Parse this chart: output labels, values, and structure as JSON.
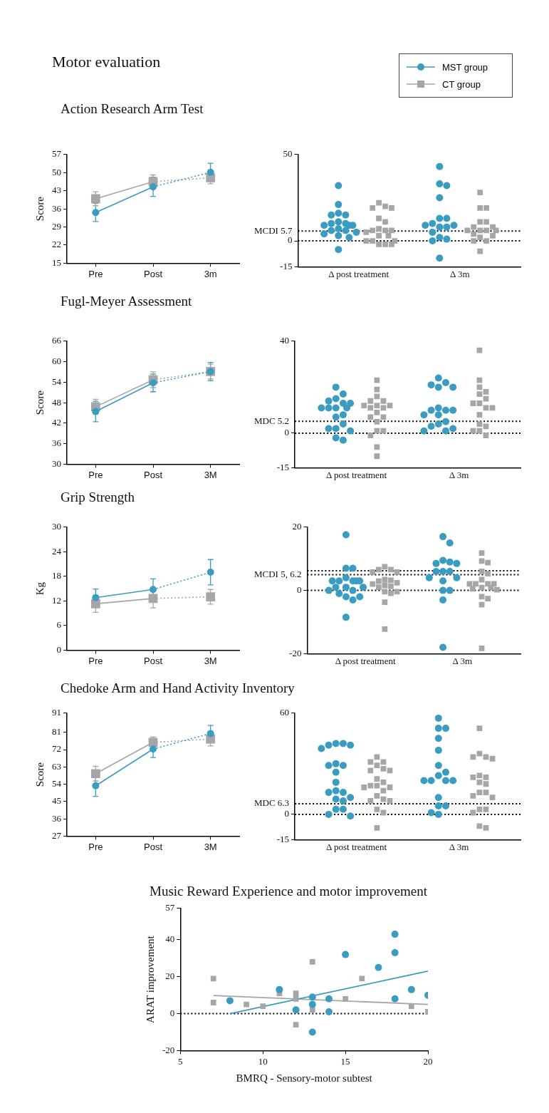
{
  "chart_data": [
    {
      "type": "line",
      "title": "Action Research Arm Test",
      "annotations": [
        "Motor evaluation"
      ],
      "legend": "top right",
      "ylabel": "Score",
      "categories": [
        "Pre",
        "Post",
        "3m"
      ],
      "ylim": [
        15,
        57
      ],
      "yticks": [
        15,
        22,
        29,
        36,
        43,
        50,
        57
      ],
      "series": [
        {
          "name": "MST group",
          "color": "#3a9cc0",
          "marker": "circle",
          "line_style": [
            "solid",
            "dotted"
          ],
          "values": [
            34.6,
            44.5,
            50.1
          ],
          "errors": [
            3.5,
            3.7,
            3.5
          ]
        },
        {
          "name": "CT group",
          "color": "#a6a6a8",
          "marker": "square",
          "line_style": [
            "solid",
            "dotted"
          ],
          "values": [
            39.9,
            46.5,
            48.0
          ],
          "errors": [
            2.7,
            2.6,
            2.3
          ]
        }
      ]
    },
    {
      "type": "scatter",
      "categories": [
        "Δ post treatment",
        "Δ 3m"
      ],
      "ylim": [
        -15,
        50
      ],
      "yticks": [
        -15,
        0,
        50
      ],
      "ref_lines": [
        {
          "axis": "y",
          "value": 5.7,
          "label": "MCDI 5.7",
          "line_style": "dotted"
        },
        {
          "axis": "y",
          "value": 0,
          "line_style": "dotted"
        }
      ],
      "series": [
        {
          "color": "#3a9cc0",
          "marker": "circle",
          "values": [
            32,
            21,
            16,
            15,
            15,
            11,
            10,
            10,
            9,
            9,
            9,
            7,
            6,
            6,
            5,
            4,
            3,
            2,
            -5,
            43,
            33,
            32,
            25,
            13,
            13,
            10,
            9,
            9,
            8,
            8,
            5,
            2,
            1,
            0,
            -10
          ],
          "x": [
            "Δ post treatment",
            "Δ post treatment",
            "Δ post treatment",
            "Δ post treatment",
            "Δ post treatment",
            "Δ post treatment",
            "Δ post treatment",
            "Δ post treatment",
            "Δ post treatment",
            "Δ post treatment",
            "Δ post treatment",
            "Δ post treatment",
            "Δ post treatment",
            "Δ post treatment",
            "Δ post treatment",
            "Δ post treatment",
            "Δ post treatment",
            "Δ post treatment",
            "Δ post treatment",
            "Δ 3m",
            "Δ 3m",
            "Δ 3m",
            "Δ 3m",
            "Δ 3m",
            "Δ 3m",
            "Δ 3m",
            "Δ 3m",
            "Δ 3m",
            "Δ 3m",
            "Δ 3m",
            "Δ 3m",
            "Δ 3m",
            "Δ 3m",
            "Δ 3m",
            "Δ 3m"
          ]
        },
        {
          "color": "#a6a6a8",
          "marker": "square",
          "values": [
            22,
            20,
            19,
            19,
            13,
            11,
            7,
            6,
            6,
            6,
            5,
            3,
            3,
            0,
            0,
            0,
            -2,
            -2,
            -2,
            28,
            19,
            19,
            11,
            11,
            8,
            8,
            6,
            6,
            6,
            6,
            4,
            3,
            2,
            0,
            0,
            -6
          ],
          "x": [
            "Δ post treatment",
            "Δ post treatment",
            "Δ post treatment",
            "Δ post treatment",
            "Δ post treatment",
            "Δ post treatment",
            "Δ post treatment",
            "Δ post treatment",
            "Δ post treatment",
            "Δ post treatment",
            "Δ post treatment",
            "Δ post treatment",
            "Δ post treatment",
            "Δ post treatment",
            "Δ post treatment",
            "Δ post treatment",
            "Δ post treatment",
            "Δ post treatment",
            "Δ post treatment",
            "Δ 3m",
            "Δ 3m",
            "Δ 3m",
            "Δ 3m",
            "Δ 3m",
            "Δ 3m",
            "Δ 3m",
            "Δ 3m",
            "Δ 3m",
            "Δ 3m",
            "Δ 3m",
            "Δ 3m",
            "Δ 3m",
            "Δ 3m",
            "Δ 3m",
            "Δ 3m",
            "Δ 3m"
          ]
        }
      ]
    },
    {
      "type": "line",
      "title": "Fugl-Meyer Assessment",
      "ylabel": "Score",
      "categories": [
        "Pre",
        "Post",
        "3M"
      ],
      "ylim": [
        30,
        66
      ],
      "yticks": [
        30,
        36,
        42,
        48,
        54,
        60,
        66
      ],
      "series": [
        {
          "color": "#3a9cc0",
          "marker": "circle",
          "line_style": [
            "solid",
            "dotted"
          ],
          "values": [
            45.4,
            53.8,
            57.1
          ],
          "errors": [
            3.0,
            2.6,
            2.7
          ]
        },
        {
          "color": "#a6a6a8",
          "marker": "square",
          "line_style": [
            "solid",
            "dotted"
          ],
          "values": [
            46.8,
            54.7,
            57.1
          ],
          "errors": [
            2.2,
            2.3,
            2.2
          ]
        }
      ]
    },
    {
      "type": "scatter",
      "categories": [
        "Δ post treatment",
        "Δ 3m"
      ],
      "ylim": [
        -15,
        40
      ],
      "yticks": [
        -15,
        0,
        40
      ],
      "ref_lines": [
        {
          "axis": "y",
          "value": 5.2,
          "label": "MDC 5.2",
          "line_style": "dotted"
        },
        {
          "axis": "y",
          "value": 0,
          "line_style": "dotted"
        }
      ],
      "series": [
        {
          "color": "#3a9cc0",
          "marker": "circle",
          "values": [
            20,
            17,
            15,
            14,
            13,
            13,
            11,
            11,
            11,
            11,
            8,
            7,
            4,
            2,
            2,
            1,
            -2,
            -3,
            24,
            22,
            21,
            20,
            20,
            11,
            10,
            10,
            10,
            8,
            8,
            5,
            4,
            3,
            2,
            1,
            1
          ],
          "x": [
            "Δ post treatment",
            "Δ post treatment",
            "Δ post treatment",
            "Δ post treatment",
            "Δ post treatment",
            "Δ post treatment",
            "Δ post treatment",
            "Δ post treatment",
            "Δ post treatment",
            "Δ post treatment",
            "Δ post treatment",
            "Δ post treatment",
            "Δ post treatment",
            "Δ post treatment",
            "Δ post treatment",
            "Δ post treatment",
            "Δ post treatment",
            "Δ post treatment",
            "Δ 3m",
            "Δ 3m",
            "Δ 3m",
            "Δ 3m",
            "Δ 3m",
            "Δ 3m",
            "Δ 3m",
            "Δ 3m",
            "Δ 3m",
            "Δ 3m",
            "Δ 3m",
            "Δ 3m",
            "Δ 3m",
            "Δ 3m",
            "Δ 3m",
            "Δ 3m",
            "Δ 3m"
          ]
        },
        {
          "color": "#a6a6a8",
          "marker": "square",
          "values": [
            23,
            19,
            16,
            14,
            14,
            12,
            12,
            12,
            11,
            11,
            9,
            7,
            7,
            5,
            1,
            1,
            -1,
            -6,
            -10,
            36,
            23,
            20,
            18,
            17,
            15,
            13,
            13,
            11,
            11,
            8,
            4,
            3,
            1,
            1,
            -1
          ],
          "x": [
            "Δ post treatment",
            "Δ post treatment",
            "Δ post treatment",
            "Δ post treatment",
            "Δ post treatment",
            "Δ post treatment",
            "Δ post treatment",
            "Δ post treatment",
            "Δ post treatment",
            "Δ post treatment",
            "Δ post treatment",
            "Δ post treatment",
            "Δ post treatment",
            "Δ post treatment",
            "Δ post treatment",
            "Δ post treatment",
            "Δ post treatment",
            "Δ post treatment",
            "Δ post treatment",
            "Δ 3m",
            "Δ 3m",
            "Δ 3m",
            "Δ 3m",
            "Δ 3m",
            "Δ 3m",
            "Δ 3m",
            "Δ 3m",
            "Δ 3m",
            "Δ 3m",
            "Δ 3m",
            "Δ 3m",
            "Δ 3m",
            "Δ 3m",
            "Δ 3m",
            "Δ 3m"
          ]
        }
      ]
    },
    {
      "type": "line",
      "title": "Grip Strength",
      "ylabel": "Kg",
      "categories": [
        "Pre",
        "Post",
        "3M"
      ],
      "ylim": [
        0,
        30
      ],
      "yticks": [
        0,
        6,
        12,
        18,
        24,
        30
      ],
      "series": [
        {
          "color": "#3a9cc0",
          "marker": "circle",
          "line_style": [
            "solid",
            "dotted"
          ],
          "values": [
            12.8,
            14.8,
            19.0
          ],
          "errors": [
            2.1,
            2.6,
            3.1
          ]
        },
        {
          "color": "#a6a6a8",
          "marker": "square",
          "line_style": [
            "solid",
            "dotted"
          ],
          "values": [
            11.3,
            12.6,
            13.0
          ],
          "errors": [
            2.1,
            2.3,
            1.8
          ]
        }
      ]
    },
    {
      "type": "scatter",
      "categories": [
        "Δ post treatment",
        "Δ 3m"
      ],
      "ylim": [
        -20,
        20
      ],
      "yticks": [
        -20,
        0,
        20
      ],
      "ref_lines": [
        {
          "axis": "y",
          "value": 5,
          "label": "MCDI 5, 6.2",
          "line_style": "dotted"
        },
        {
          "axis": "y",
          "value": 6.2,
          "line_style": "dotted"
        },
        {
          "axis": "y",
          "value": 0,
          "line_style": "dotted"
        }
      ],
      "series": [
        {
          "color": "#3a9cc0",
          "marker": "circle",
          "values": [
            17.6,
            7,
            7,
            4,
            3,
            3,
            3,
            3,
            3,
            1,
            1,
            1,
            0,
            0,
            -1,
            -2,
            -2,
            -3,
            -8.5,
            17,
            15,
            9.5,
            9,
            8.5,
            8.5,
            6,
            6,
            6,
            4,
            4,
            3,
            0,
            0,
            -3,
            -18
          ],
          "x": [
            "Δ post treatment",
            "Δ post treatment",
            "Δ post treatment",
            "Δ post treatment",
            "Δ post treatment",
            "Δ post treatment",
            "Δ post treatment",
            "Δ post treatment",
            "Δ post treatment",
            "Δ post treatment",
            "Δ post treatment",
            "Δ post treatment",
            "Δ post treatment",
            "Δ post treatment",
            "Δ post treatment",
            "Δ post treatment",
            "Δ post treatment",
            "Δ post treatment",
            "Δ post treatment",
            "Δ 3m",
            "Δ 3m",
            "Δ 3m",
            "Δ 3m",
            "Δ 3m",
            "Δ 3m",
            "Δ 3m",
            "Δ 3m",
            "Δ 3m",
            "Δ 3m",
            "Δ 3m",
            "Δ 3m",
            "Δ 3m",
            "Δ 3m",
            "Δ 3m",
            "Δ 3m"
          ]
        },
        {
          "color": "#a6a6a8",
          "marker": "square",
          "values": [
            7.5,
            6.6,
            6.6,
            5.8,
            5.8,
            3.4,
            3.2,
            2.9,
            2.4,
            2,
            1.6,
            1.3,
            1,
            -0.4,
            -0.4,
            -0.9,
            -3.7,
            -12.2,
            11.8,
            9.3,
            8.8,
            6,
            5.3,
            3.4,
            2.1,
            2.1,
            2.1,
            2.1,
            0.9,
            0.9,
            0.5,
            0.2,
            -2,
            -2.6,
            -4.5,
            -18.3
          ],
          "x": [
            "Δ post treatment",
            "Δ post treatment",
            "Δ post treatment",
            "Δ post treatment",
            "Δ post treatment",
            "Δ post treatment",
            "Δ post treatment",
            "Δ post treatment",
            "Δ post treatment",
            "Δ post treatment",
            "Δ post treatment",
            "Δ post treatment",
            "Δ post treatment",
            "Δ post treatment",
            "Δ post treatment",
            "Δ post treatment",
            "Δ post treatment",
            "Δ post treatment",
            "Δ 3m",
            "Δ 3m",
            "Δ 3m",
            "Δ 3m",
            "Δ 3m",
            "Δ 3m",
            "Δ 3m",
            "Δ 3m",
            "Δ 3m",
            "Δ 3m",
            "Δ 3m",
            "Δ 3m",
            "Δ 3m",
            "Δ 3m",
            "Δ 3m",
            "Δ 3m",
            "Δ 3m",
            "Δ 3m"
          ]
        }
      ]
    },
    {
      "type": "line",
      "title": "Chedoke Arm and Hand Activity Inventory",
      "ylabel": "Score",
      "categories": [
        "Pre",
        "Post",
        "3M"
      ],
      "ylim": [
        27,
        91
      ],
      "yticks": [
        27,
        36,
        45,
        54,
        63,
        72,
        81,
        91
      ],
      "series": [
        {
          "color": "#3a9cc0",
          "marker": "circle",
          "line_style": [
            "solid",
            "dotted"
          ],
          "values": [
            53.2,
            72.3,
            80.4
          ],
          "errors": [
            5.5,
            4.4,
            4.2
          ]
        },
        {
          "color": "#a6a6a8",
          "marker": "square",
          "line_style": [
            "solid",
            "dotted"
          ],
          "values": [
            59.5,
            75.8,
            77.5
          ],
          "errors": [
            3.8,
            2.7,
            3.6
          ]
        }
      ]
    },
    {
      "type": "scatter",
      "categories": [
        "Δ post treatment",
        "Δ 3m"
      ],
      "ylim": [
        -15,
        60
      ],
      "yticks": [
        -15,
        0,
        60
      ],
      "ref_lines": [
        {
          "axis": "y",
          "value": 6.3,
          "label": "MDC 6.3",
          "line_style": "dotted"
        },
        {
          "axis": "y",
          "value": 0,
          "line_style": "dotted"
        }
      ],
      "series": [
        {
          "color": "#3a9cc0",
          "marker": "circle",
          "values": [
            42,
            42,
            41,
            41,
            39,
            30,
            29,
            29,
            25,
            19,
            14,
            13,
            13,
            10,
            9,
            8,
            3,
            3,
            0,
            -1,
            57,
            51,
            51,
            45,
            38,
            29,
            25,
            23,
            20,
            20,
            20,
            20,
            10,
            5,
            5,
            1,
            0
          ],
          "x": [
            "Δ post treatment",
            "Δ post treatment",
            "Δ post treatment",
            "Δ post treatment",
            "Δ post treatment",
            "Δ post treatment",
            "Δ post treatment",
            "Δ post treatment",
            "Δ post treatment",
            "Δ post treatment",
            "Δ post treatment",
            "Δ post treatment",
            "Δ post treatment",
            "Δ post treatment",
            "Δ post treatment",
            "Δ post treatment",
            "Δ post treatment",
            "Δ post treatment",
            "Δ post treatment",
            "Δ post treatment",
            "Δ 3m",
            "Δ 3m",
            "Δ 3m",
            "Δ 3m",
            "Δ 3m",
            "Δ 3m",
            "Δ 3m",
            "Δ 3m",
            "Δ 3m",
            "Δ 3m",
            "Δ 3m",
            "Δ 3m",
            "Δ 3m",
            "Δ 3m",
            "Δ 3m",
            "Δ 3m",
            "Δ 3m"
          ]
        },
        {
          "color": "#a6a6a8",
          "marker": "square",
          "values": [
            34,
            31,
            31,
            29,
            27,
            26,
            26,
            21,
            19,
            17,
            17,
            16,
            16,
            14,
            11,
            9,
            8,
            8,
            3,
            1,
            -8,
            51,
            36,
            34,
            34,
            33,
            23,
            22,
            22,
            19,
            18,
            13,
            13,
            11,
            10,
            3,
            3,
            1,
            -7,
            -8
          ],
          "x": [
            "Δ post treatment",
            "Δ post treatment",
            "Δ post treatment",
            "Δ post treatment",
            "Δ post treatment",
            "Δ post treatment",
            "Δ post treatment",
            "Δ post treatment",
            "Δ post treatment",
            "Δ post treatment",
            "Δ post treatment",
            "Δ post treatment",
            "Δ post treatment",
            "Δ post treatment",
            "Δ post treatment",
            "Δ post treatment",
            "Δ post treatment",
            "Δ post treatment",
            "Δ post treatment",
            "Δ post treatment",
            "Δ post treatment",
            "Δ 3m",
            "Δ 3m",
            "Δ 3m",
            "Δ 3m",
            "Δ 3m",
            "Δ 3m",
            "Δ 3m",
            "Δ 3m",
            "Δ 3m",
            "Δ 3m",
            "Δ 3m",
            "Δ 3m",
            "Δ 3m",
            "Δ 3m",
            "Δ 3m",
            "Δ 3m",
            "Δ 3m",
            "Δ 3m",
            "Δ 3m"
          ]
        }
      ]
    },
    {
      "type": "scatter",
      "title": "Music Reward Experience and motor improvement",
      "xlabel": "BMRQ - Sensory-motor subtest",
      "ylabel": "ARAT improvement",
      "xlim": [
        5,
        20
      ],
      "xticks": [
        5,
        10,
        15,
        20
      ],
      "ylim": [
        -20,
        57
      ],
      "yticks": [
        -20,
        0,
        20,
        40,
        57
      ],
      "ref_lines": [
        {
          "axis": "y",
          "value": 0,
          "line_style": "dotted"
        }
      ],
      "series": [
        {
          "color": "#3a9cc0",
          "marker": "circle",
          "x": [
            8,
            11,
            12,
            13,
            13,
            13,
            14,
            14,
            15,
            17,
            18,
            18,
            18,
            19,
            20
          ],
          "values": [
            7,
            13,
            2,
            9,
            5,
            -10,
            8,
            1,
            32,
            25,
            43,
            33,
            8,
            13,
            10
          ]
        },
        {
          "color": "#a6a6a8",
          "marker": "square",
          "x": [
            7,
            7,
            9,
            10,
            11,
            12,
            12,
            12,
            13,
            13,
            15,
            16,
            19,
            20
          ],
          "values": [
            19,
            6,
            5,
            4,
            11,
            11,
            8,
            -6,
            28,
            2,
            8,
            19,
            4,
            1
          ]
        },
        {
          "type": "line",
          "color": "#3a9cc0",
          "marker": "none",
          "line_style": "solid",
          "x": [
            8,
            20
          ],
          "values": [
            0,
            23
          ]
        },
        {
          "type": "line",
          "color": "#a6a6a8",
          "marker": "none",
          "line_style": "solid",
          "x": [
            7,
            20
          ],
          "values": [
            9.8,
            5
          ]
        }
      ]
    }
  ]
}
